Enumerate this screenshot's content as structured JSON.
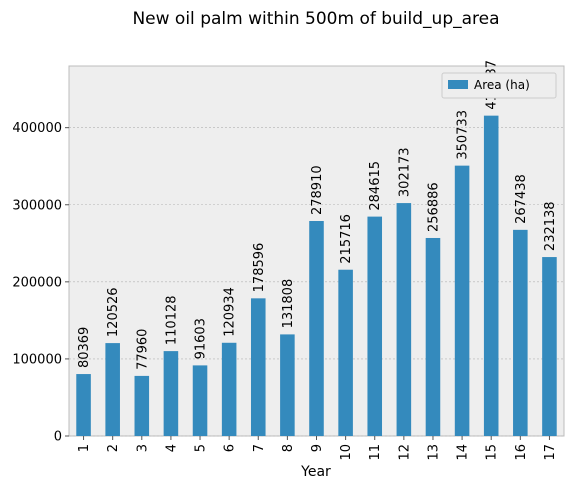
{
  "chart_data": {
    "type": "bar",
    "title": "New oil palm within 500m of build_up_area",
    "xlabel": "Year",
    "ylabel": "",
    "categories": [
      "1",
      "2",
      "3",
      "4",
      "5",
      "6",
      "7",
      "8",
      "9",
      "10",
      "11",
      "12",
      "13",
      "14",
      "15",
      "16",
      "17"
    ],
    "series": [
      {
        "name": "Area (ha)",
        "values": [
          80369,
          120526,
          77960,
          110128,
          91603,
          120934,
          178596,
          131808,
          278910,
          215716,
          284615,
          302173,
          256886,
          350733,
          415587,
          267438,
          232138
        ],
        "color": "#348abd"
      }
    ],
    "data_labels": [
      "80369",
      "120526",
      "77960",
      "110128",
      "91603",
      "120934",
      "178596",
      "131808",
      "278910",
      "215716",
      "284615",
      "302173",
      "256886",
      "350733",
      "415587",
      "267438",
      "232138"
    ],
    "yticks": [
      0,
      100000,
      200000,
      300000,
      400000
    ],
    "ytick_labels": [
      "0",
      "100000",
      "200000",
      "300000",
      "400000"
    ],
    "ylim": [
      0,
      480000
    ],
    "grid": true,
    "legend_position": "top-right",
    "background_color": "#eeeeee",
    "grid_color": "#b2b2b2"
  }
}
